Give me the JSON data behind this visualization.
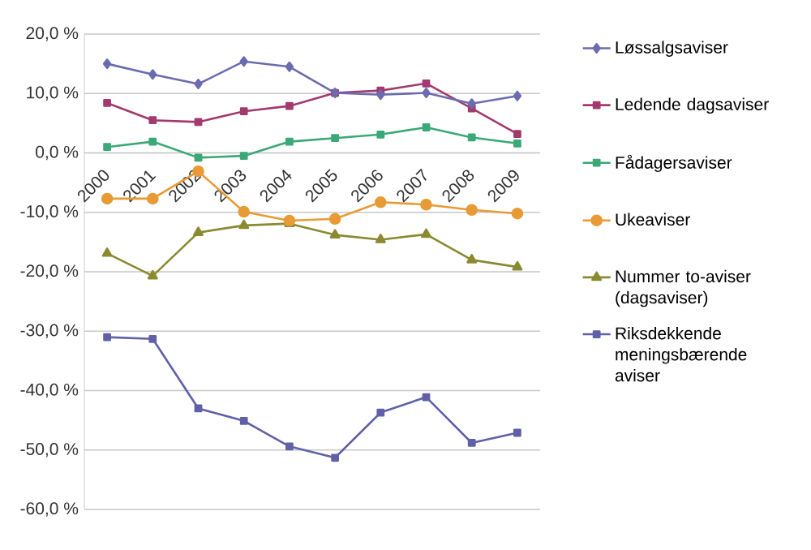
{
  "chart_data": {
    "type": "line",
    "categories": [
      "2000",
      "2001",
      "2002",
      "2003",
      "2004",
      "2005",
      "2006",
      "2007",
      "2008",
      "2009"
    ],
    "series": [
      {
        "name": "Løssalgsaviser",
        "color": "#6b6bb0",
        "marker": "diamond",
        "values": [
          15.0,
          13.2,
          11.6,
          15.4,
          14.5,
          10.1,
          9.8,
          10.1,
          8.3,
          9.6
        ]
      },
      {
        "name": "Ledende dagsaviser",
        "color": "#a33a6e",
        "marker": "square",
        "values": [
          8.4,
          5.5,
          5.2,
          7.0,
          7.9,
          10.1,
          10.5,
          11.7,
          7.5,
          3.2
        ]
      },
      {
        "name": "Fådagersaviser",
        "color": "#3aa877",
        "marker": "square",
        "values": [
          1.0,
          1.9,
          -0.8,
          -0.5,
          1.9,
          2.5,
          3.1,
          4.3,
          2.6,
          1.6
        ]
      },
      {
        "name": "Ukeaviser",
        "color": "#e89a35",
        "marker": "circle",
        "values": [
          -7.7,
          -7.7,
          -3.1,
          -9.9,
          -11.4,
          -11.1,
          -8.3,
          -8.7,
          -9.6,
          -10.2
        ]
      },
      {
        "name": "Nummer to-aviser (dagsaviser)",
        "color": "#8a8a30",
        "marker": "triangle",
        "values": [
          -16.9,
          -20.7,
          -13.4,
          -12.2,
          -11.9,
          -13.8,
          -14.6,
          -13.7,
          -18.0,
          -19.2
        ]
      },
      {
        "name": "Riksdekkende meningsbærende aviser",
        "color": "#6060a8",
        "marker": "square",
        "values": [
          -31.0,
          -31.3,
          -43.0,
          -45.1,
          -49.4,
          -51.3,
          -43.7,
          -41.1,
          -48.8,
          -47.1
        ]
      }
    ],
    "ylim": [
      -60,
      20
    ],
    "yticks": [
      {
        "value": -60,
        "label": "-60,0 %"
      },
      {
        "value": -50,
        "label": "-50,0 %"
      },
      {
        "value": -40,
        "label": "-40,0 %"
      },
      {
        "value": -30,
        "label": "-30,0 %"
      },
      {
        "value": -20,
        "label": "-20,0 %"
      },
      {
        "value": -10,
        "label": "-10,0 %"
      },
      {
        "value": 0,
        "label": "0,0 %"
      },
      {
        "value": 10,
        "label": "10,0 %"
      },
      {
        "value": 20,
        "label": "20,0 %"
      }
    ],
    "grid": "y",
    "legend": "right",
    "line_style": "solid"
  }
}
